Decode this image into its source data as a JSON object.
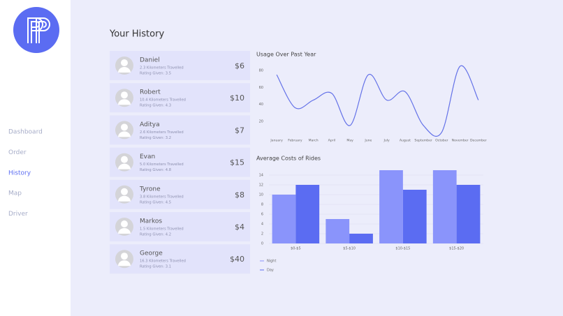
{
  "heading": "Your History",
  "nav": [
    {
      "label": "Dashboard"
    },
    {
      "label": "Order"
    },
    {
      "label": "History",
      "active": true
    },
    {
      "label": "Map"
    },
    {
      "label": "Driver"
    }
  ],
  "history": [
    {
      "name": "Daniel",
      "distance": "2.3 Kilometers Travelled",
      "rating": "Rating Given: 3.5",
      "price": "$6"
    },
    {
      "name": "Robert",
      "distance": "10.4 Kilometers Travelled",
      "rating": "Rating Given: 4.3",
      "price": "$10"
    },
    {
      "name": "Aditya",
      "distance": "2.6 Kilometers Travelled",
      "rating": "Rating Given: 3.2",
      "price": "$7"
    },
    {
      "name": "Evan",
      "distance": "5.0 Kilometers Travelled",
      "rating": "Rating Given: 4.8",
      "price": "$15"
    },
    {
      "name": "Tyrone",
      "distance": "3.8 Kilometers Travelled",
      "rating": "Rating Given: 4.5",
      "price": "$8"
    },
    {
      "name": "Markos",
      "distance": "1.5 Kilometers Travelled",
      "rating": "Rating Given: 4.2",
      "price": "$4"
    },
    {
      "name": "George",
      "distance": "16.3 Kilometers Travelled",
      "rating": "Rating Given: 3.1",
      "price": "$40"
    }
  ],
  "chart_data": [
    {
      "type": "line",
      "title": "Usage Over Past Year",
      "categories": [
        "January",
        "February",
        "March",
        "April",
        "May",
        "June",
        "July",
        "August",
        "September",
        "October",
        "November",
        "December"
      ],
      "values": [
        75,
        36,
        45,
        53,
        15,
        75,
        45,
        55,
        15,
        7,
        85,
        45
      ],
      "color": "#6472e8",
      "ylim": [
        0,
        85
      ],
      "yticks": [
        20,
        40,
        60,
        80
      ]
    },
    {
      "type": "bar",
      "title": "Average Costs of Rides",
      "categories": [
        "$0-$5",
        "$5-$10",
        "$10-$15",
        "$15-$20"
      ],
      "series": [
        {
          "name": "Night",
          "color": "#8a94fb",
          "values": [
            10,
            5,
            15,
            15
          ]
        },
        {
          "name": "Day",
          "color": "#5b6cf2",
          "values": [
            12,
            2,
            11,
            12
          ]
        }
      ],
      "ylim": [
        0,
        15
      ],
      "yticks": [
        0,
        2,
        4,
        6,
        8,
        10,
        12,
        14
      ],
      "grid": true
    }
  ]
}
